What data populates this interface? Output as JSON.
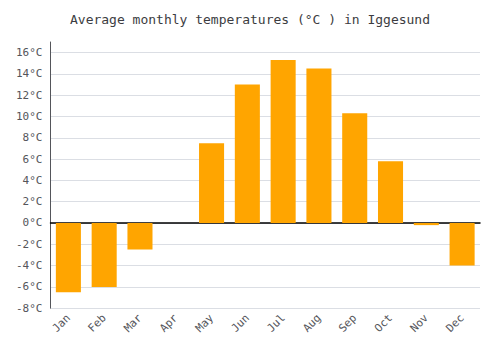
{
  "chart_data": {
    "type": "bar",
    "title": "Average monthly temperatures (°C ) in Iggesund",
    "categories": [
      "Jan",
      "Feb",
      "Mar",
      "Apr",
      "May",
      "Jun",
      "Jul",
      "Aug",
      "Sep",
      "Oct",
      "Nov",
      "Dec"
    ],
    "values": [
      -6.5,
      -6.0,
      -2.5,
      0,
      7.5,
      13.0,
      15.3,
      14.5,
      10.3,
      5.8,
      -0.2,
      -4.0
    ],
    "color": "#FFA500",
    "ylim": [
      -8,
      17
    ],
    "yticks": [
      {
        "value": -8,
        "label": "-8°C"
      },
      {
        "value": -6,
        "label": "-6°C"
      },
      {
        "value": -4,
        "label": "-4°C"
      },
      {
        "value": -2,
        "label": "-2°C"
      },
      {
        "value": 0,
        "label": "0°C"
      },
      {
        "value": 2,
        "label": "2°C"
      },
      {
        "value": 4,
        "label": "4°C"
      },
      {
        "value": 6,
        "label": "6°C"
      },
      {
        "value": 8,
        "label": "8°C"
      },
      {
        "value": 10,
        "label": "10°C"
      },
      {
        "value": 12,
        "label": "12°C"
      },
      {
        "value": 14,
        "label": "14°C"
      },
      {
        "value": 16,
        "label": "16°C"
      }
    ],
    "grid": true
  }
}
